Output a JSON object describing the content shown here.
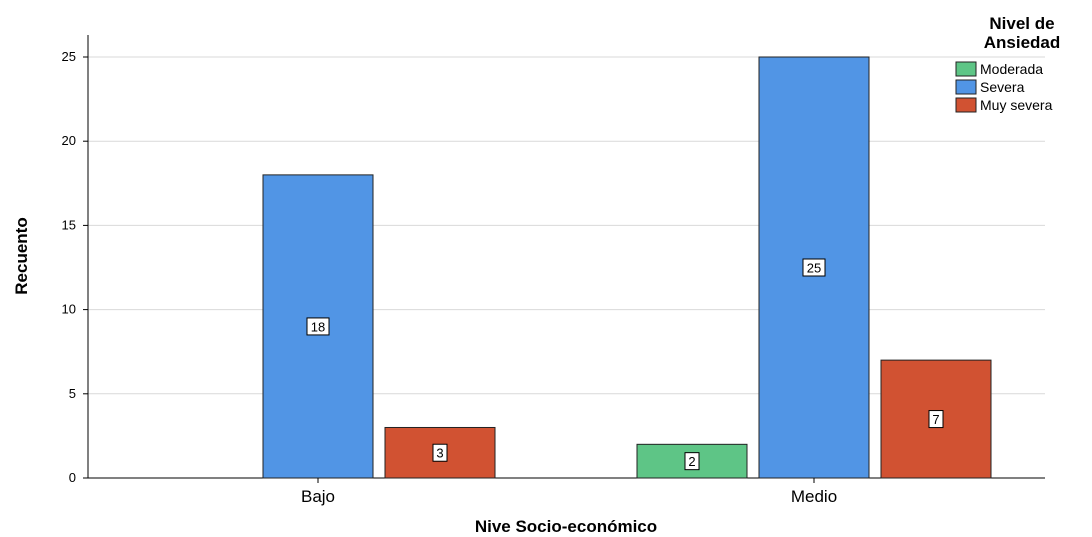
{
  "chart_data": {
    "type": "bar",
    "categories": [
      "Bajo",
      "Medio"
    ],
    "series": [
      {
        "name": "Moderada",
        "color": "#5ec586",
        "values": [
          null,
          2
        ]
      },
      {
        "name": "Severa",
        "color": "#5195e5",
        "values": [
          18,
          25
        ]
      },
      {
        "name": "Muy severa",
        "color": "#d15232",
        "values": [
          3,
          7
        ]
      }
    ],
    "xlabel": "Nive Socio-económico",
    "ylabel": "Recuento",
    "ylim": [
      0,
      25
    ],
    "yticks": [
      0,
      5,
      10,
      15,
      20,
      25
    ],
    "grid": true,
    "legend": {
      "title_lines": [
        "Nivel de",
        "Ansiedad"
      ],
      "placement": "top-right"
    }
  }
}
